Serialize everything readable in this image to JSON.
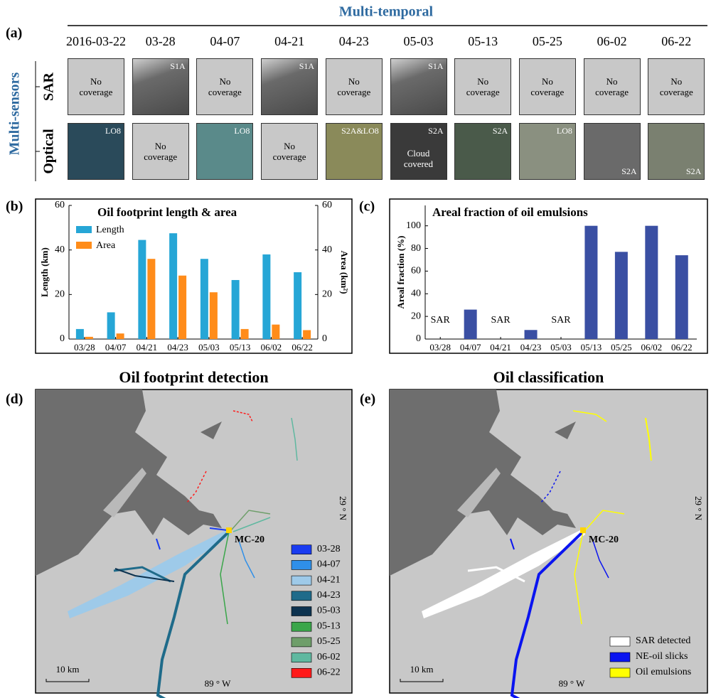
{
  "panel_a": {
    "label": "(a)",
    "title": "Multi-temporal",
    "side_title": "Multi-sensors",
    "dates": [
      "2016-03-22",
      "03-28",
      "04-07",
      "04-21",
      "04-23",
      "05-03",
      "05-13",
      "05-25",
      "06-02",
      "06-22"
    ],
    "rows": [
      {
        "name": "SAR",
        "tiles": [
          {
            "note": "No coverage"
          },
          {
            "sensor": "S1A"
          },
          {
            "note": "No coverage"
          },
          {
            "sensor": "S1A"
          },
          {
            "note": "No coverage"
          },
          {
            "sensor": "S1A"
          },
          {
            "note": "No coverage"
          },
          {
            "note": "No coverage"
          },
          {
            "note": "No coverage"
          },
          {
            "note": "No coverage"
          }
        ]
      },
      {
        "name": "Optical",
        "tiles": [
          {
            "sensor": "LO8"
          },
          {
            "note": "No coverage"
          },
          {
            "sensor": "LO8"
          },
          {
            "note": "No coverage"
          },
          {
            "sensor": "S2A&LO8"
          },
          {
            "sensor": "S2A",
            "note": "Cloud covered"
          },
          {
            "sensor": "S2A"
          },
          {
            "sensor": "LO8"
          },
          {
            "sensor": "S2A"
          },
          {
            "sensor": "S2A"
          }
        ]
      }
    ]
  },
  "chart_data": [
    {
      "type": "bar",
      "label": "(b)",
      "title": "Oil footprint length & area",
      "categories": [
        "03/28",
        "04/07",
        "04/21",
        "04/23",
        "05/03",
        "05/13",
        "06/02",
        "06/22"
      ],
      "series": [
        {
          "name": "Length",
          "color": "#26a6d6",
          "values": [
            4.5,
            12,
            44.5,
            47.5,
            36,
            26.5,
            38,
            30
          ]
        },
        {
          "name": "Area",
          "color": "#ff8c1a",
          "axis": "y2",
          "values": [
            1,
            2.5,
            36,
            28.5,
            21,
            4.5,
            6.5,
            4
          ]
        }
      ],
      "ylabel": "Length (km)",
      "y2label": "Area (km²)",
      "ylim": [
        0,
        60
      ],
      "yticks": [
        0,
        20,
        40,
        60
      ],
      "y2lim": [
        0,
        60
      ],
      "y2ticks": [
        0,
        20,
        40,
        60
      ],
      "legend": "upper left",
      "grid": false
    },
    {
      "type": "bar",
      "label": "(c)",
      "title": "Areal fraction of oil emulsions",
      "categories": [
        "03/28",
        "04/07",
        "04/21",
        "04/23",
        "05/03",
        "05/13",
        "05/25",
        "06/02",
        "06/22"
      ],
      "values": [
        null,
        26,
        null,
        8,
        null,
        100,
        77,
        100,
        74
      ],
      "value_labels": [
        "SAR",
        null,
        "SAR",
        null,
        "SAR",
        null,
        null,
        null,
        null
      ],
      "color": "#3a4fa3",
      "ylabel": "Areal fraction (%)",
      "ylim": [
        0,
        118
      ],
      "yticks": [
        0,
        20,
        40,
        60,
        80,
        100
      ],
      "grid": false
    }
  ],
  "maps": [
    {
      "label": "(d)",
      "title": "Oil footprint detection",
      "lat_label": "29 ° N",
      "lon_label": "89 ° W",
      "site": "MC-20",
      "scale": "10 km",
      "legend": [
        {
          "name": "03-28",
          "color": "#1a3cf0"
        },
        {
          "name": "04-07",
          "color": "#2f8fe8"
        },
        {
          "name": "04-21",
          "color": "#9ecae9"
        },
        {
          "name": "04-23",
          "color": "#1f6b8a"
        },
        {
          "name": "05-03",
          "color": "#0d3350"
        },
        {
          "name": "05-13",
          "color": "#3aa64a"
        },
        {
          "name": "05-25",
          "color": "#6e9e6a"
        },
        {
          "name": "06-02",
          "color": "#5fb8a0"
        },
        {
          "name": "06-22",
          "color": "#ff1a1a"
        }
      ]
    },
    {
      "label": "(e)",
      "title": "Oil classification",
      "lat_label": "29 ° N",
      "lon_label": "89 ° W",
      "site": "MC-20",
      "scale": "10 km",
      "legend": [
        {
          "name": "SAR detected",
          "color": "#ffffff"
        },
        {
          "name": "NE-oil slicks",
          "color": "#0a14f0"
        },
        {
          "name": "Oil emulsions",
          "color": "#ffff00"
        }
      ]
    }
  ]
}
